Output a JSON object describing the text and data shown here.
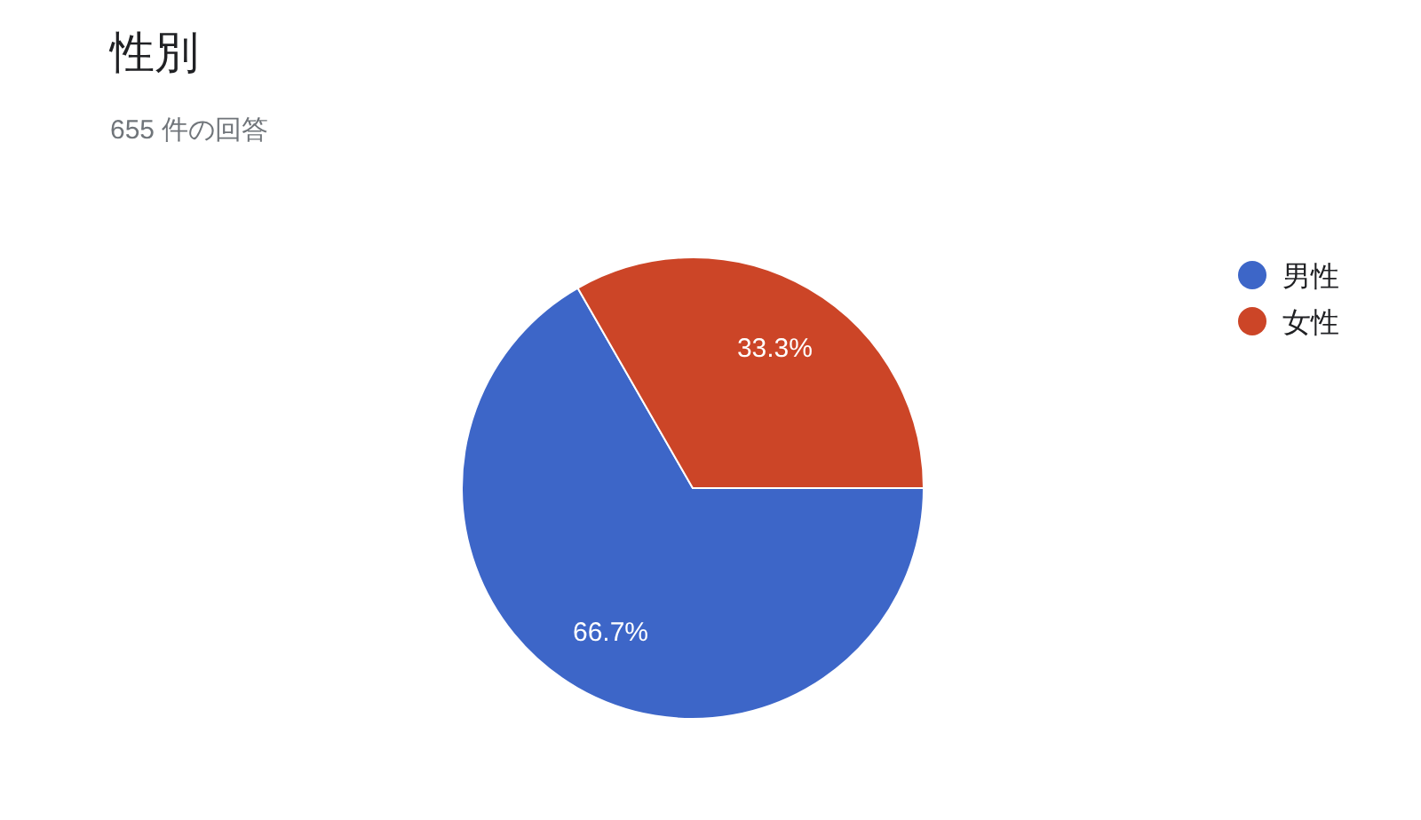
{
  "chart_data": {
    "type": "pie",
    "title": "性別",
    "subtitle": "655 件の回答",
    "categories": [
      "男性",
      "女性"
    ],
    "values": [
      66.7,
      33.3
    ],
    "colors": [
      "#3d66c8",
      "#cc4527"
    ],
    "value_labels": [
      "66.7%",
      "33.3%"
    ],
    "legend": "right"
  }
}
